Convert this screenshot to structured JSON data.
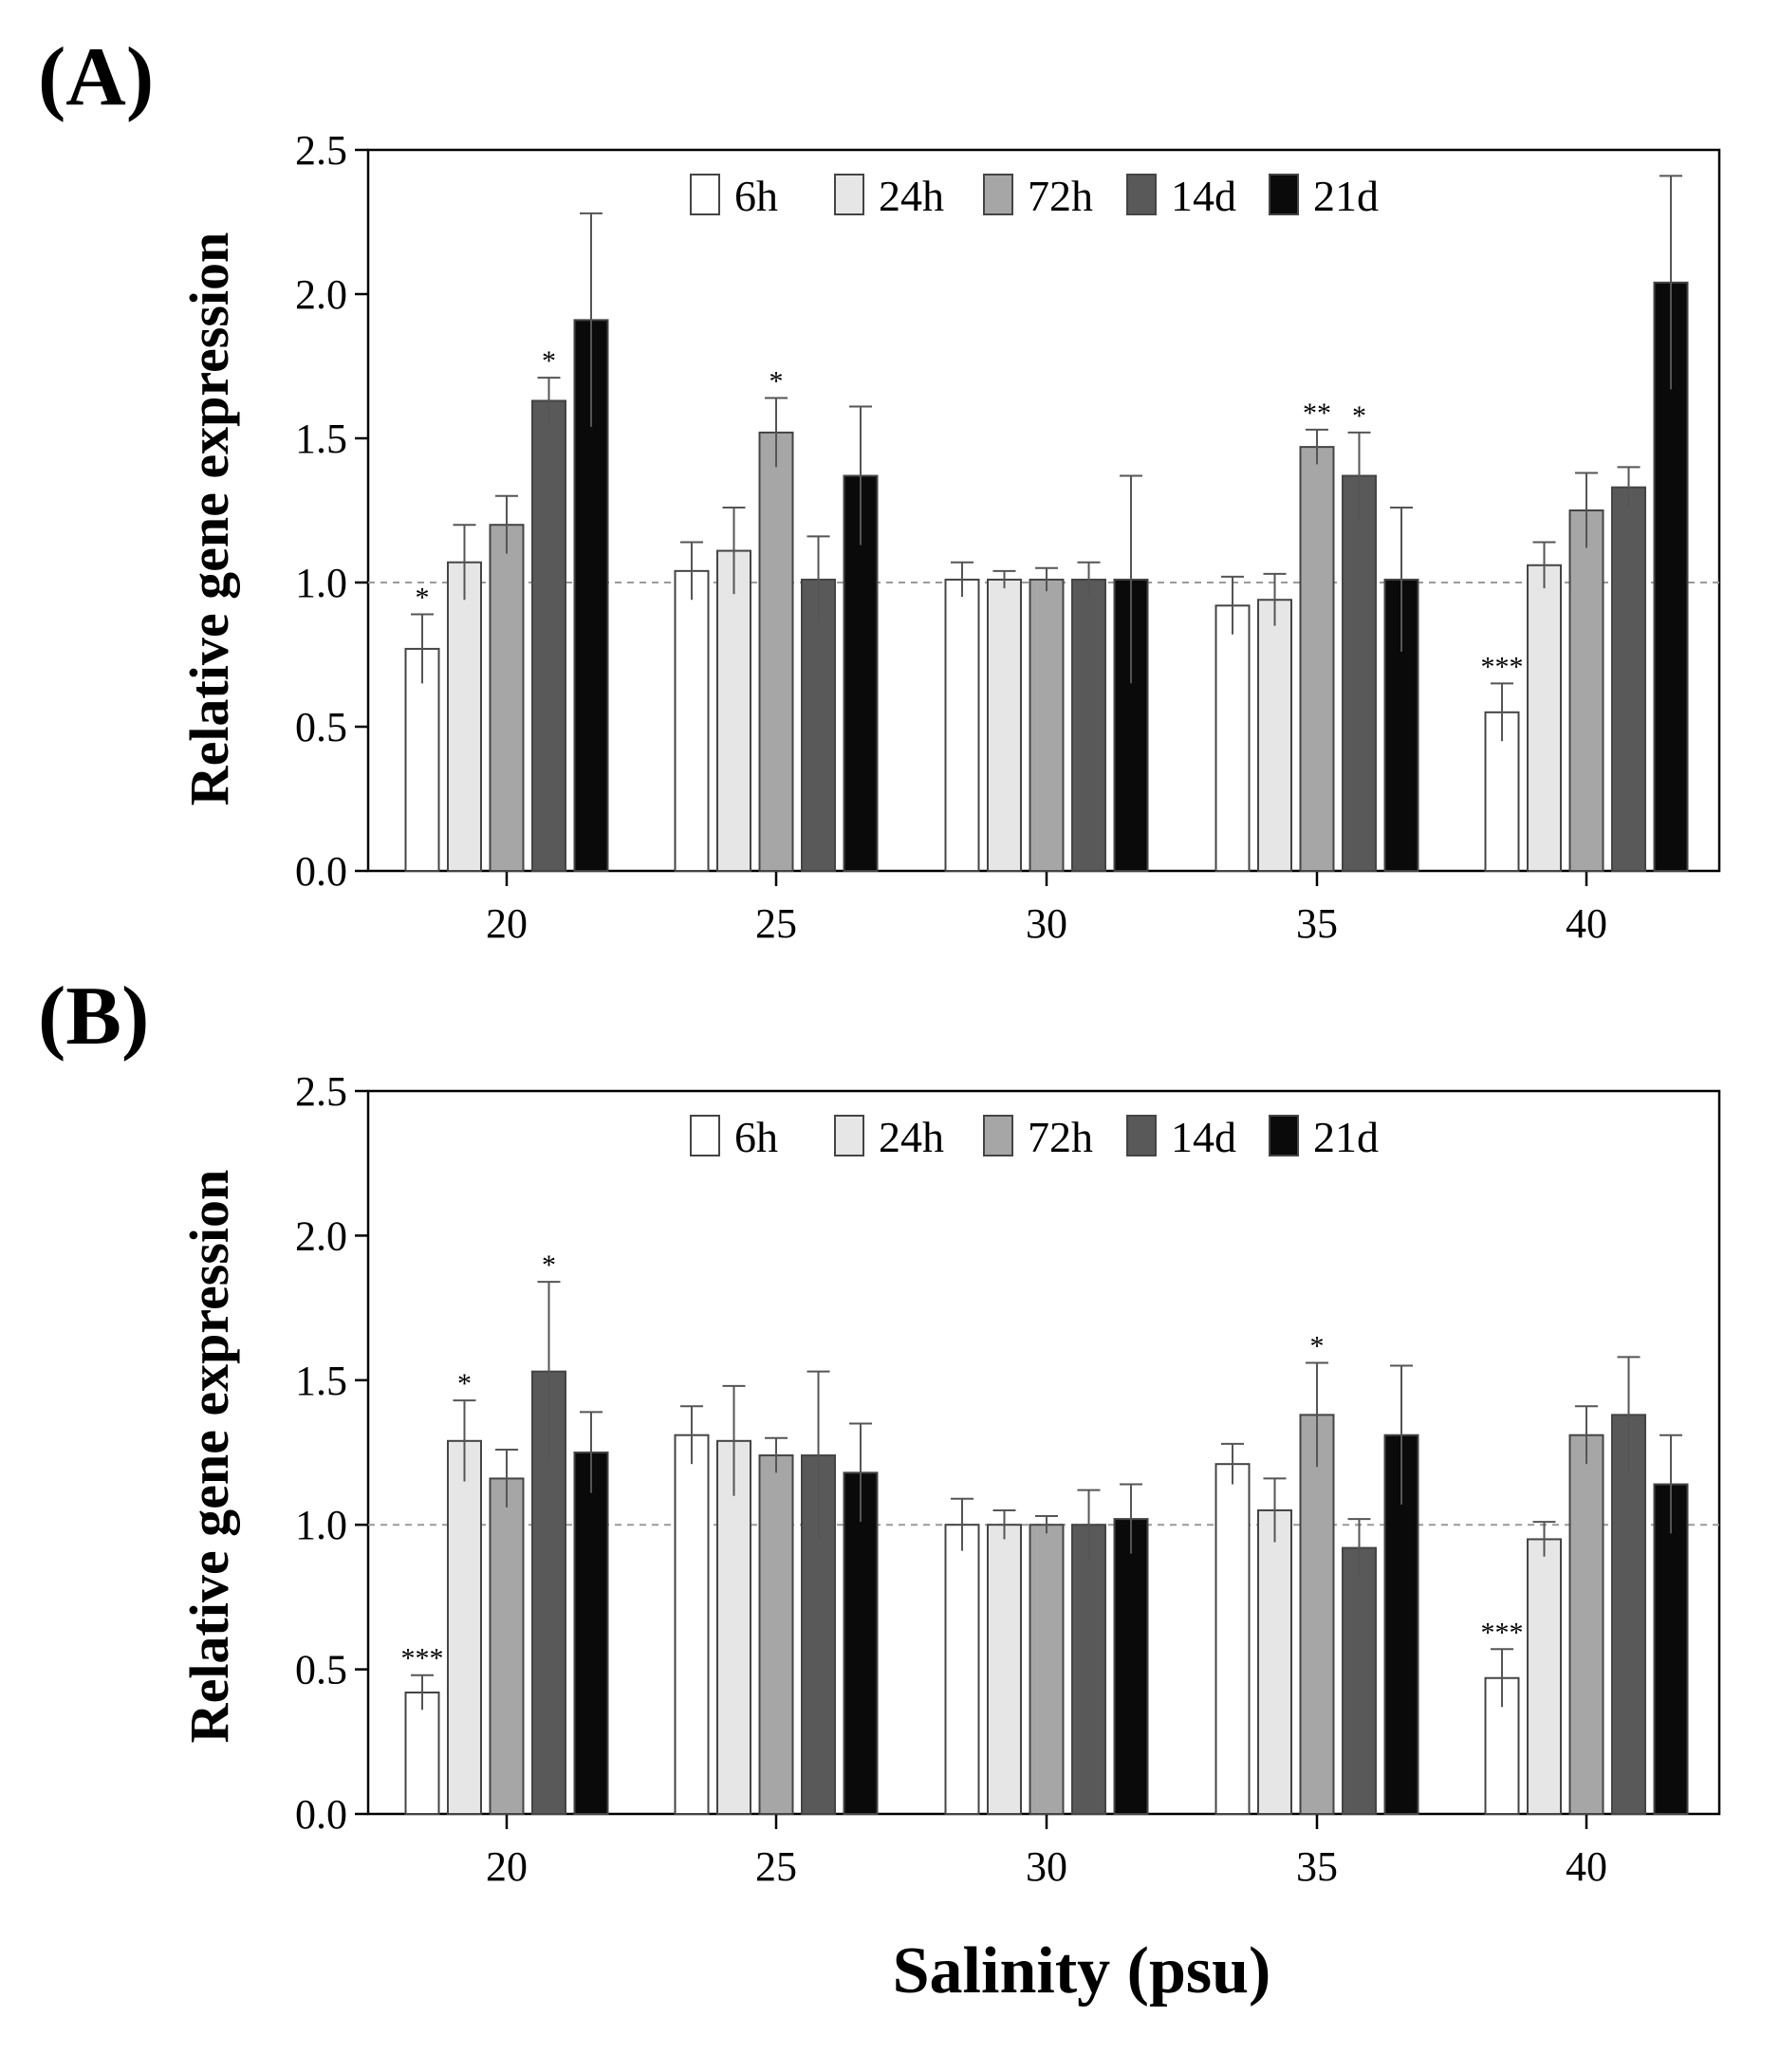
{
  "xlabel": "Salinity (psu)",
  "colors": {
    "6h": "#ffffff",
    "24h": "#e6e6e6",
    "72h": "#a6a6a6",
    "14d": "#595959",
    "21d": "#0a0a0a",
    "reference_line": "#9a9a9a"
  },
  "chart_data": [
    {
      "type": "bar",
      "panel_label": "(A)",
      "ylabel": "Relative gene expression",
      "xlabel": "",
      "ylim": [
        0,
        2.5
      ],
      "yticks": [
        "0.0",
        "0.5",
        "1.0",
        "1.5",
        "2.0",
        "2.5"
      ],
      "categories": [
        "20",
        "25",
        "30",
        "35",
        "40"
      ],
      "reference_value": 1.0,
      "legend_position": "top-center",
      "series": [
        {
          "name": "6h",
          "values": [
            0.77,
            1.04,
            1.01,
            0.92,
            0.55
          ],
          "errors": [
            0.12,
            0.1,
            0.06,
            0.1,
            0.1
          ],
          "annotations": [
            "*",
            "",
            "",
            "",
            "***"
          ]
        },
        {
          "name": "24h",
          "values": [
            1.07,
            1.11,
            1.01,
            0.94,
            1.06
          ],
          "errors": [
            0.13,
            0.15,
            0.03,
            0.09,
            0.08
          ],
          "annotations": [
            "",
            "",
            "",
            "",
            ""
          ]
        },
        {
          "name": "72h",
          "values": [
            1.2,
            1.52,
            1.01,
            1.47,
            1.25
          ],
          "errors": [
            0.1,
            0.12,
            0.04,
            0.06,
            0.13
          ],
          "annotations": [
            "",
            "*",
            "",
            "**",
            ""
          ]
        },
        {
          "name": "14d",
          "values": [
            1.63,
            1.01,
            1.01,
            1.37,
            1.33
          ],
          "errors": [
            0.08,
            0.15,
            0.06,
            0.15,
            0.07
          ],
          "annotations": [
            "*",
            "",
            "",
            "*",
            ""
          ]
        },
        {
          "name": "21d",
          "values": [
            1.91,
            1.37,
            1.01,
            1.01,
            2.04
          ],
          "errors": [
            0.37,
            0.24,
            0.36,
            0.25,
            0.37
          ],
          "annotations": [
            "",
            "",
            "",
            "",
            ""
          ]
        }
      ]
    },
    {
      "type": "bar",
      "panel_label": "(B)",
      "ylabel": "Relative gene expression",
      "xlabel": "Salinity (psu)",
      "ylim": [
        0,
        2.5
      ],
      "yticks": [
        "0.0",
        "0.5",
        "1.0",
        "1.5",
        "2.0",
        "2.5"
      ],
      "categories": [
        "20",
        "25",
        "30",
        "35",
        "40"
      ],
      "reference_value": 1.0,
      "legend_position": "top-center",
      "series": [
        {
          "name": "6h",
          "values": [
            0.42,
            1.31,
            1.0,
            1.21,
            0.47
          ],
          "errors": [
            0.06,
            0.1,
            0.09,
            0.07,
            0.1
          ],
          "annotations": [
            "***",
            "",
            "",
            "",
            "***"
          ]
        },
        {
          "name": "24h",
          "values": [
            1.29,
            1.29,
            1.0,
            1.05,
            0.95
          ],
          "errors": [
            0.14,
            0.19,
            0.05,
            0.11,
            0.06
          ],
          "annotations": [
            "*",
            "",
            "",
            "",
            ""
          ]
        },
        {
          "name": "72h",
          "values": [
            1.16,
            1.24,
            1.0,
            1.38,
            1.31
          ],
          "errors": [
            0.1,
            0.06,
            0.03,
            0.18,
            0.1
          ],
          "annotations": [
            "",
            "",
            "",
            "*",
            ""
          ]
        },
        {
          "name": "14d",
          "values": [
            1.53,
            1.24,
            1.0,
            0.92,
            1.38
          ],
          "errors": [
            0.31,
            0.29,
            0.12,
            0.1,
            0.2
          ],
          "annotations": [
            "*",
            "",
            "",
            "",
            ""
          ]
        },
        {
          "name": "21d",
          "values": [
            1.25,
            1.18,
            1.02,
            1.31,
            1.14
          ],
          "errors": [
            0.14,
            0.17,
            0.12,
            0.24,
            0.17
          ],
          "annotations": [
            "",
            "",
            "",
            "",
            ""
          ]
        }
      ]
    }
  ]
}
